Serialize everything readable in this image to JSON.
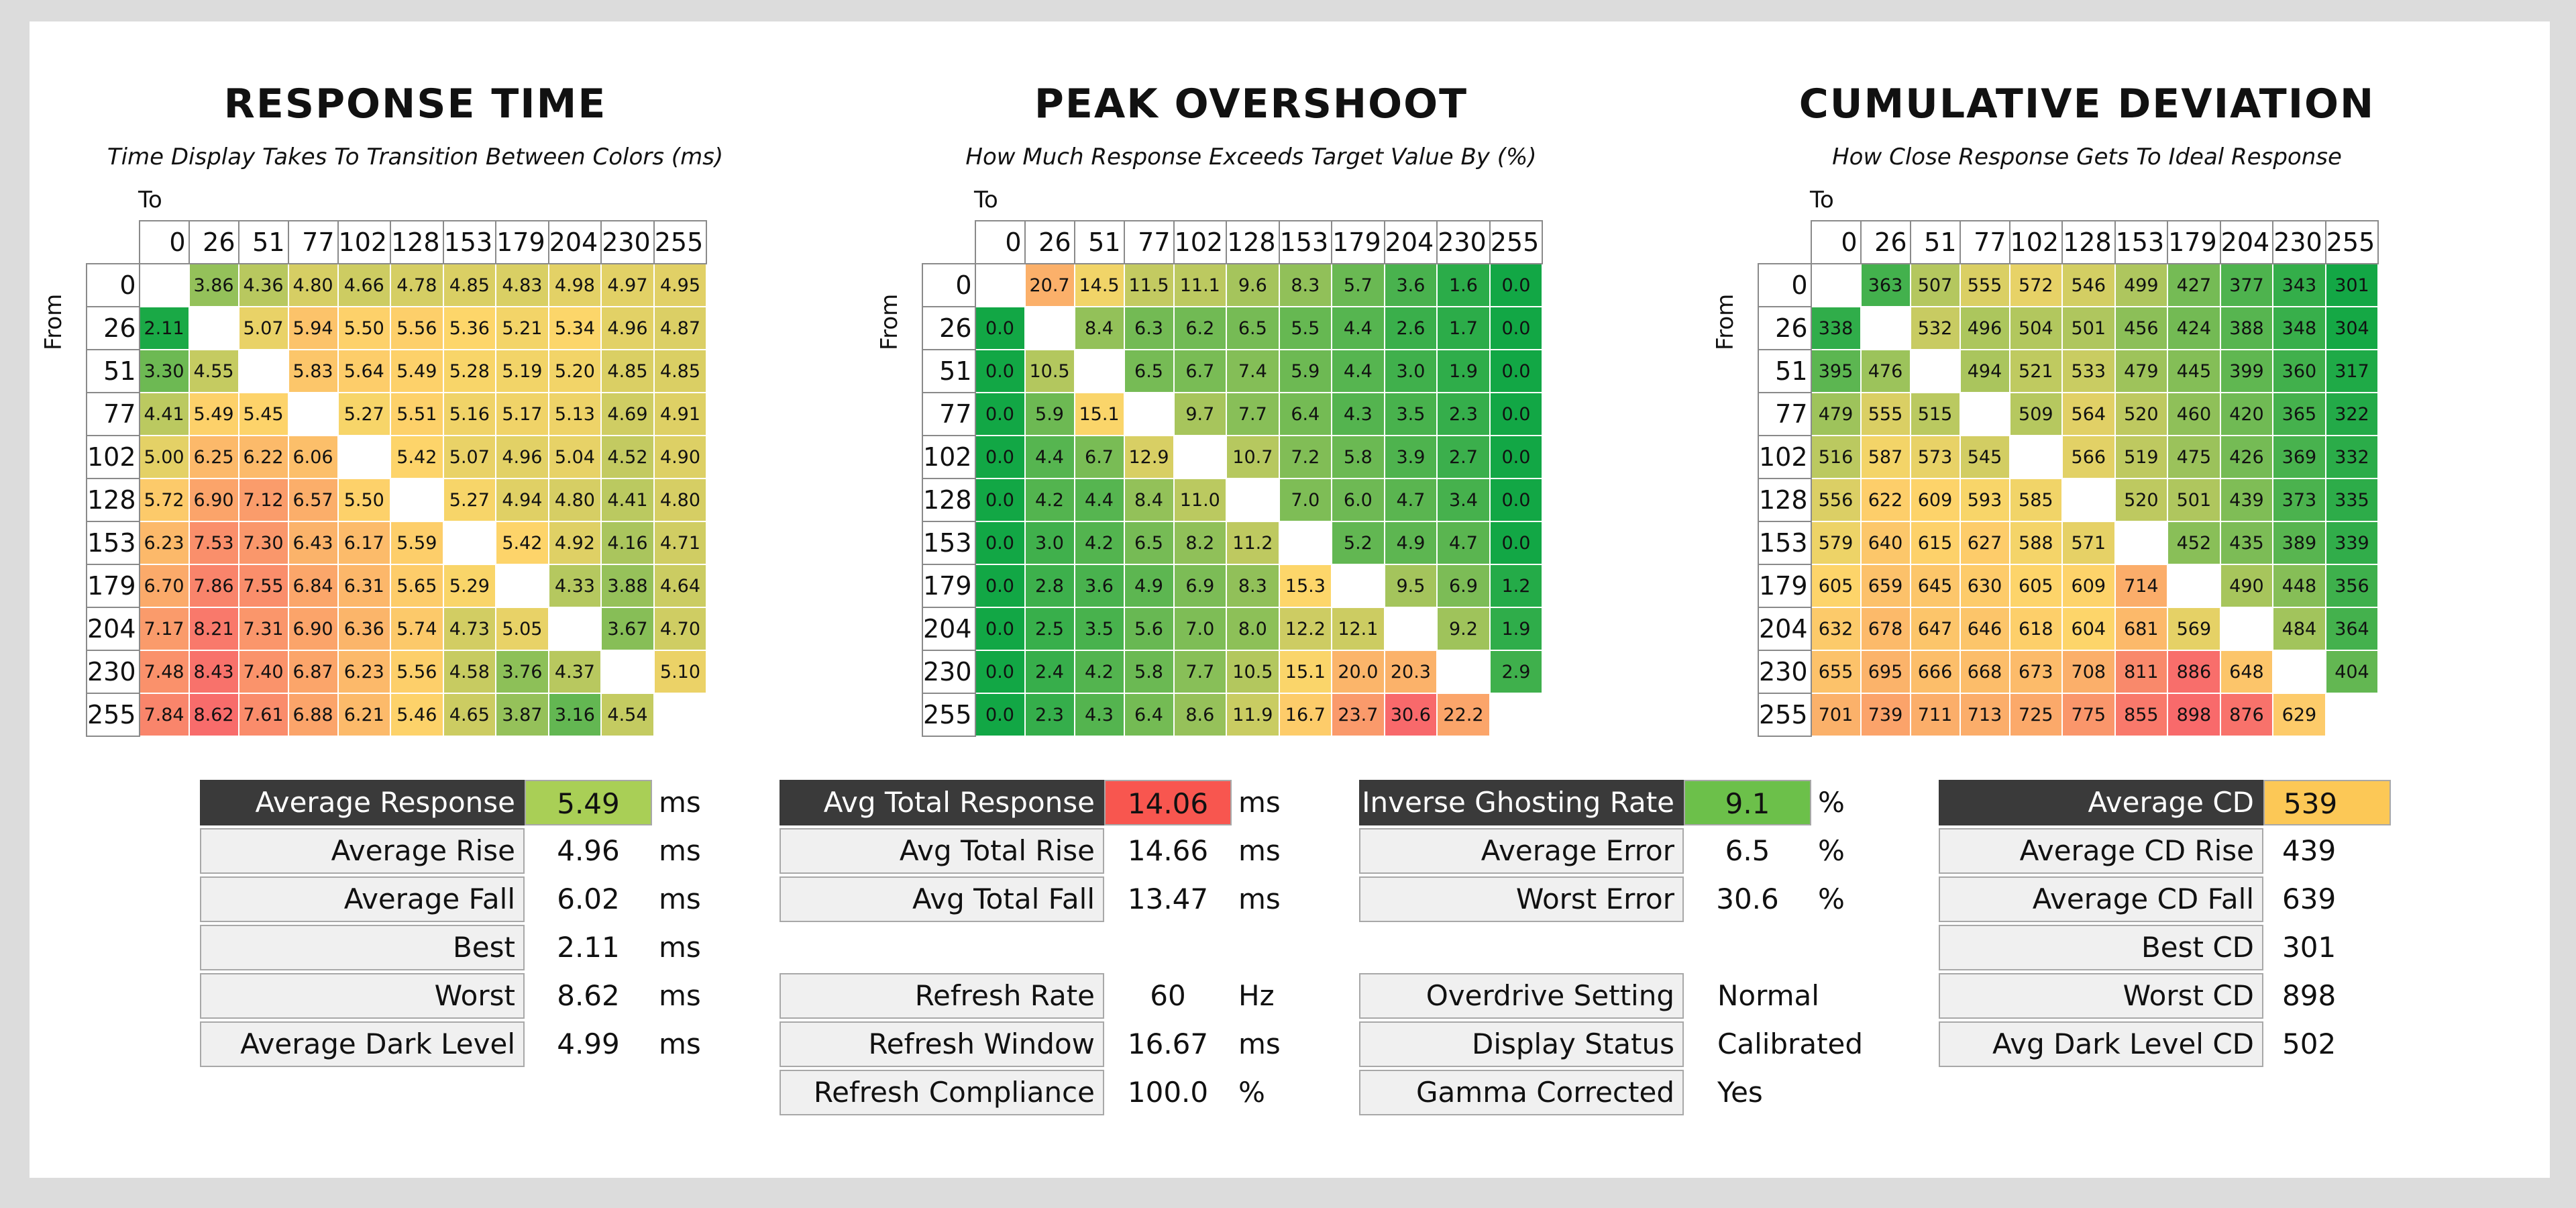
{
  "chart_data": [
    {
      "type": "heatmap",
      "title": "RESPONSE TIME",
      "subtitle": "Time Display Takes To Transition Between Colors (ms)",
      "xlabel": "To",
      "ylabel": "From",
      "levels": [
        "0",
        "26",
        "51",
        "77",
        "102",
        "128",
        "153",
        "179",
        "204",
        "230",
        "255"
      ],
      "values": [
        [
          null,
          "3.86",
          "4.36",
          "4.80",
          "4.66",
          "4.78",
          "4.85",
          "4.83",
          "4.98",
          "4.97",
          "4.95"
        ],
        [
          "2.11",
          null,
          "5.07",
          "5.94",
          "5.50",
          "5.56",
          "5.36",
          "5.21",
          "5.34",
          "4.96",
          "4.87"
        ],
        [
          "3.30",
          "4.55",
          null,
          "5.83",
          "5.64",
          "5.49",
          "5.28",
          "5.19",
          "5.20",
          "4.85",
          "4.85"
        ],
        [
          "4.41",
          "5.49",
          "5.45",
          null,
          "5.27",
          "5.51",
          "5.16",
          "5.17",
          "5.13",
          "4.69",
          "4.91"
        ],
        [
          "5.00",
          "6.25",
          "6.22",
          "6.06",
          null,
          "5.42",
          "5.07",
          "4.96",
          "5.04",
          "4.52",
          "4.90"
        ],
        [
          "5.72",
          "6.90",
          "7.12",
          "6.57",
          "5.50",
          null,
          "5.27",
          "4.94",
          "4.80",
          "4.41",
          "4.80"
        ],
        [
          "6.23",
          "7.53",
          "7.30",
          "6.43",
          "6.17",
          "5.59",
          null,
          "5.42",
          "4.92",
          "4.16",
          "4.71"
        ],
        [
          "6.70",
          "7.86",
          "7.55",
          "6.84",
          "6.31",
          "5.65",
          "5.29",
          null,
          "4.33",
          "3.88",
          "4.64"
        ],
        [
          "7.17",
          "8.21",
          "7.31",
          "6.90",
          "6.36",
          "5.74",
          "4.73",
          "5.05",
          null,
          "3.67",
          "4.70"
        ],
        [
          "7.48",
          "8.43",
          "7.40",
          "6.87",
          "6.23",
          "5.56",
          "4.58",
          "3.76",
          "4.37",
          null,
          "5.10"
        ],
        [
          "7.84",
          "8.62",
          "7.61",
          "6.88",
          "6.21",
          "5.46",
          "4.65",
          "3.87",
          "3.16",
          "4.54",
          null
        ]
      ],
      "color_range": [
        2.0,
        8.7
      ],
      "colors": {
        "low": "#12a745",
        "mid": "#fdd66a",
        "high": "#f8696b"
      }
    },
    {
      "type": "heatmap",
      "title": "PEAK OVERSHOOT",
      "subtitle": "How Much Response Exceeds Target Value By (%)",
      "xlabel": "To",
      "ylabel": "From",
      "levels": [
        "0",
        "26",
        "51",
        "77",
        "102",
        "128",
        "153",
        "179",
        "204",
        "230",
        "255"
      ],
      "values": [
        [
          null,
          "20.7",
          "14.5",
          "11.5",
          "11.1",
          "9.6",
          "8.3",
          "5.7",
          "3.6",
          "1.6",
          "0.0"
        ],
        [
          "0.0",
          null,
          "8.4",
          "6.3",
          "6.2",
          "6.5",
          "5.5",
          "4.4",
          "2.6",
          "1.7",
          "0.0"
        ],
        [
          "0.0",
          "10.5",
          null,
          "6.5",
          "6.7",
          "7.4",
          "5.9",
          "4.4",
          "3.0",
          "1.9",
          "0.0"
        ],
        [
          "0.0",
          "5.9",
          "15.1",
          null,
          "9.7",
          "7.7",
          "6.4",
          "4.3",
          "3.5",
          "2.3",
          "0.0"
        ],
        [
          "0.0",
          "4.4",
          "6.7",
          "12.9",
          null,
          "10.7",
          "7.2",
          "5.8",
          "3.9",
          "2.7",
          "0.0"
        ],
        [
          "0.0",
          "4.2",
          "4.4",
          "8.4",
          "11.0",
          null,
          "7.0",
          "6.0",
          "4.7",
          "3.4",
          "0.0"
        ],
        [
          "0.0",
          "3.0",
          "4.2",
          "6.5",
          "8.2",
          "11.2",
          null,
          "5.2",
          "4.9",
          "4.7",
          "0.0"
        ],
        [
          "0.0",
          "2.8",
          "3.6",
          "4.9",
          "6.9",
          "8.3",
          "15.3",
          null,
          "9.5",
          "6.9",
          "1.2"
        ],
        [
          "0.0",
          "2.5",
          "3.5",
          "5.6",
          "7.0",
          "8.0",
          "12.2",
          "12.1",
          null,
          "9.2",
          "1.9"
        ],
        [
          "0.0",
          "2.4",
          "4.2",
          "5.8",
          "7.7",
          "10.5",
          "15.1",
          "20.0",
          "20.3",
          null,
          "2.9"
        ],
        [
          "0.0",
          "2.3",
          "4.3",
          "6.4",
          "8.6",
          "11.9",
          "16.7",
          "23.7",
          "30.6",
          "22.2",
          null
        ]
      ],
      "color_range": [
        0.0,
        30.6
      ],
      "colors": {
        "low": "#12a745",
        "mid": "#fdd66a",
        "high": "#f8696b"
      }
    },
    {
      "type": "heatmap",
      "title": "CUMULATIVE DEVIATION",
      "subtitle": "How Close Response Gets To Ideal Response",
      "xlabel": "To",
      "ylabel": "From",
      "levels": [
        "0",
        "26",
        "51",
        "77",
        "102",
        "128",
        "153",
        "179",
        "204",
        "230",
        "255"
      ],
      "values": [
        [
          null,
          "363",
          "507",
          "555",
          "572",
          "546",
          "499",
          "427",
          "377",
          "343",
          "301"
        ],
        [
          "338",
          null,
          "532",
          "496",
          "504",
          "501",
          "456",
          "424",
          "388",
          "348",
          "304"
        ],
        [
          "395",
          "476",
          null,
          "494",
          "521",
          "533",
          "479",
          "445",
          "399",
          "360",
          "317"
        ],
        [
          "479",
          "555",
          "515",
          null,
          "509",
          "564",
          "520",
          "460",
          "420",
          "365",
          "322"
        ],
        [
          "516",
          "587",
          "573",
          "545",
          null,
          "566",
          "519",
          "475",
          "426",
          "369",
          "332"
        ],
        [
          "556",
          "622",
          "609",
          "593",
          "585",
          null,
          "520",
          "501",
          "439",
          "373",
          "335"
        ],
        [
          "579",
          "640",
          "615",
          "627",
          "588",
          "571",
          null,
          "452",
          "435",
          "389",
          "339"
        ],
        [
          "605",
          "659",
          "645",
          "630",
          "605",
          "609",
          "714",
          null,
          "490",
          "448",
          "356"
        ],
        [
          "632",
          "678",
          "647",
          "646",
          "618",
          "604",
          "681",
          "569",
          null,
          "484",
          "364"
        ],
        [
          "655",
          "695",
          "666",
          "668",
          "673",
          "708",
          "811",
          "886",
          "648",
          null,
          "404"
        ],
        [
          "701",
          "739",
          "711",
          "713",
          "725",
          "775",
          "855",
          "898",
          "876",
          "629",
          null
        ]
      ],
      "color_range": [
        300,
        900
      ],
      "colors": {
        "low": "#12a745",
        "mid": "#fdd66a",
        "high": "#f8696b"
      }
    }
  ],
  "stats": {
    "response": {
      "highlight_color": "#a9cf56",
      "rows": [
        {
          "label": "Average Response",
          "value": "5.49",
          "unit": "ms"
        },
        {
          "label": "Average Rise",
          "value": "4.96",
          "unit": "ms"
        },
        {
          "label": "Average Fall",
          "value": "6.02",
          "unit": "ms"
        },
        {
          "label": "Best",
          "value": "2.11",
          "unit": "ms"
        },
        {
          "label": "Worst",
          "value": "8.62",
          "unit": "ms"
        },
        {
          "label": "Average Dark Level",
          "value": "4.99",
          "unit": "ms"
        }
      ]
    },
    "total": {
      "highlight_color": "#f8564f",
      "rows": [
        {
          "label": "Avg Total Response",
          "value": "14.06",
          "unit": "ms"
        },
        {
          "label": "Avg Total Rise",
          "value": "14.66",
          "unit": "ms"
        },
        {
          "label": "Avg Total Fall",
          "value": "13.47",
          "unit": "ms"
        }
      ],
      "refresh_rows": [
        {
          "label": "Refresh Rate",
          "value": "60",
          "unit": "Hz"
        },
        {
          "label": "Refresh Window",
          "value": "16.67",
          "unit": "ms"
        },
        {
          "label": "Refresh Compliance",
          "value": "100.0",
          "unit": "%"
        }
      ]
    },
    "ghosting": {
      "highlight_color": "#6cc04a",
      "rows": [
        {
          "label": "Inverse Ghosting Rate",
          "value": "9.1",
          "unit": "%"
        },
        {
          "label": "Average Error",
          "value": "6.5",
          "unit": "%"
        },
        {
          "label": "Worst Error",
          "value": "30.6",
          "unit": "%"
        }
      ],
      "setting_rows": [
        {
          "label": "Overdrive Setting",
          "value": "Normal",
          "unit": ""
        },
        {
          "label": "Display Status",
          "value": "Calibrated",
          "unit": ""
        },
        {
          "label": "Gamma Corrected",
          "value": "Yes",
          "unit": ""
        }
      ]
    },
    "cd": {
      "highlight_color": "#fcc856",
      "rows": [
        {
          "label": "Average CD",
          "value": "539",
          "unit": ""
        },
        {
          "label": "Average CD Rise",
          "value": "439",
          "unit": ""
        },
        {
          "label": "Average CD Fall",
          "value": "639",
          "unit": ""
        },
        {
          "label": "Best CD",
          "value": "301",
          "unit": ""
        },
        {
          "label": "Worst CD",
          "value": "898",
          "unit": ""
        },
        {
          "label": "Avg Dark Level CD",
          "value": "502",
          "unit": ""
        }
      ]
    }
  }
}
